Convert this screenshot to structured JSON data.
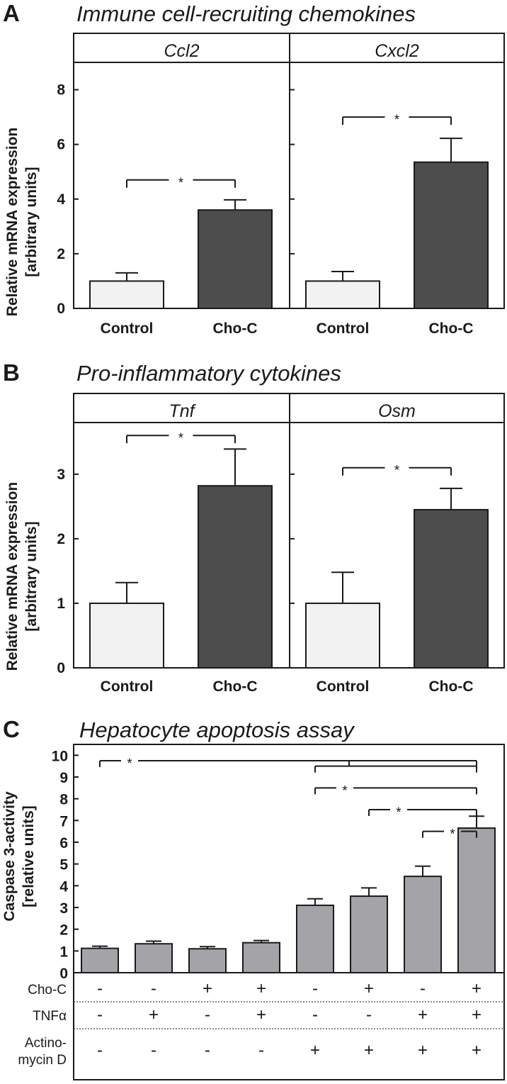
{
  "colors": {
    "control_fill": "#f2f2f2",
    "cho_fill": "#4d4d4d",
    "panel_c_fill": "#a3a3a8",
    "line": "#1a1a1a"
  },
  "chart_data": [
    {
      "type": "bar",
      "panel_letter": "A",
      "title": "Immune cell-recruiting chemokines",
      "ylabel_line1": "Relative  mRNA expression",
      "ylabel_line2": "[arbitrary units]",
      "ylim": [
        0,
        9
      ],
      "yticks": [
        0,
        2,
        4,
        6,
        8
      ],
      "subplots": [
        {
          "gene": "Ccl2",
          "categories": [
            "Control",
            "Cho-C"
          ],
          "values": [
            1.0,
            3.6
          ],
          "errors": [
            0.3,
            0.37
          ],
          "significance": {
            "from": 0,
            "to": 1,
            "y": 4.7,
            "label": "*"
          }
        },
        {
          "gene": "Cxcl2",
          "categories": [
            "Control",
            "Cho-C"
          ],
          "values": [
            1.0,
            5.35
          ],
          "errors": [
            0.35,
            0.87
          ],
          "significance": {
            "from": 0,
            "to": 1,
            "y": 7.0,
            "label": "*"
          }
        }
      ]
    },
    {
      "type": "bar",
      "panel_letter": "B",
      "title": "Pro-inflammatory cytokines",
      "ylabel_line1": "Relative mRNA expression",
      "ylabel_line2": "[arbitrary units]",
      "ylim": [
        0,
        3.8
      ],
      "yticks": [
        0,
        1,
        2,
        3
      ],
      "subplots": [
        {
          "gene": "Tnf",
          "categories": [
            "Control",
            "Cho-C"
          ],
          "values": [
            1.0,
            2.82
          ],
          "errors": [
            0.32,
            0.57
          ],
          "significance": {
            "from": 0,
            "to": 1,
            "y": 3.6,
            "label": "*"
          }
        },
        {
          "gene": "Osm",
          "categories": [
            "Control",
            "Cho-C"
          ],
          "values": [
            1.0,
            2.45
          ],
          "errors": [
            0.48,
            0.33
          ],
          "significance": {
            "from": 0,
            "to": 1,
            "y": 3.1,
            "label": "*"
          }
        }
      ]
    },
    {
      "type": "bar",
      "panel_letter": "C",
      "title": "Hepatocyte apoptosis assay",
      "ylabel_line1": "Caspase 3-activity",
      "ylabel_line2": "[relative units]",
      "ylim": [
        0,
        10.5
      ],
      "yticks": [
        0,
        1,
        2,
        3,
        4,
        5,
        6,
        7,
        8,
        9,
        10
      ],
      "values": [
        1.12,
        1.33,
        1.1,
        1.38,
        3.1,
        3.52,
        4.43,
        6.65
      ],
      "errors": [
        0.1,
        0.12,
        0.1,
        0.1,
        0.3,
        0.38,
        0.47,
        0.55
      ],
      "significance": [
        {
          "from": 0,
          "to": 7,
          "y": 9.75,
          "label": "*",
          "drop_at": 5,
          "drop_to": 9.5
        },
        {
          "from": 4,
          "to": 7,
          "y": 9.5,
          "label": ""
        },
        {
          "from": 4,
          "to": 7,
          "y": 8.5,
          "label": "*"
        },
        {
          "from": 5,
          "to": 7,
          "y": 7.5,
          "label": "*"
        },
        {
          "from": 6,
          "to": 7,
          "y": 6.5,
          "label": "*"
        }
      ],
      "treatment_table": {
        "rows": [
          {
            "label": "Cho-C",
            "values": [
              "-",
              "-",
              "+",
              "+",
              "-",
              "+",
              "-",
              "+"
            ]
          },
          {
            "label": "TNFα",
            "values": [
              "-",
              "+",
              "-",
              "+",
              "-",
              "-",
              "+",
              "+"
            ]
          },
          {
            "label": "Actino-\nmycin D",
            "label_line1": "Actino-",
            "label_line2": "mycin D",
            "values": [
              "-",
              "-",
              "-",
              "-",
              "+",
              "+",
              "+",
              "+"
            ]
          }
        ]
      }
    }
  ]
}
